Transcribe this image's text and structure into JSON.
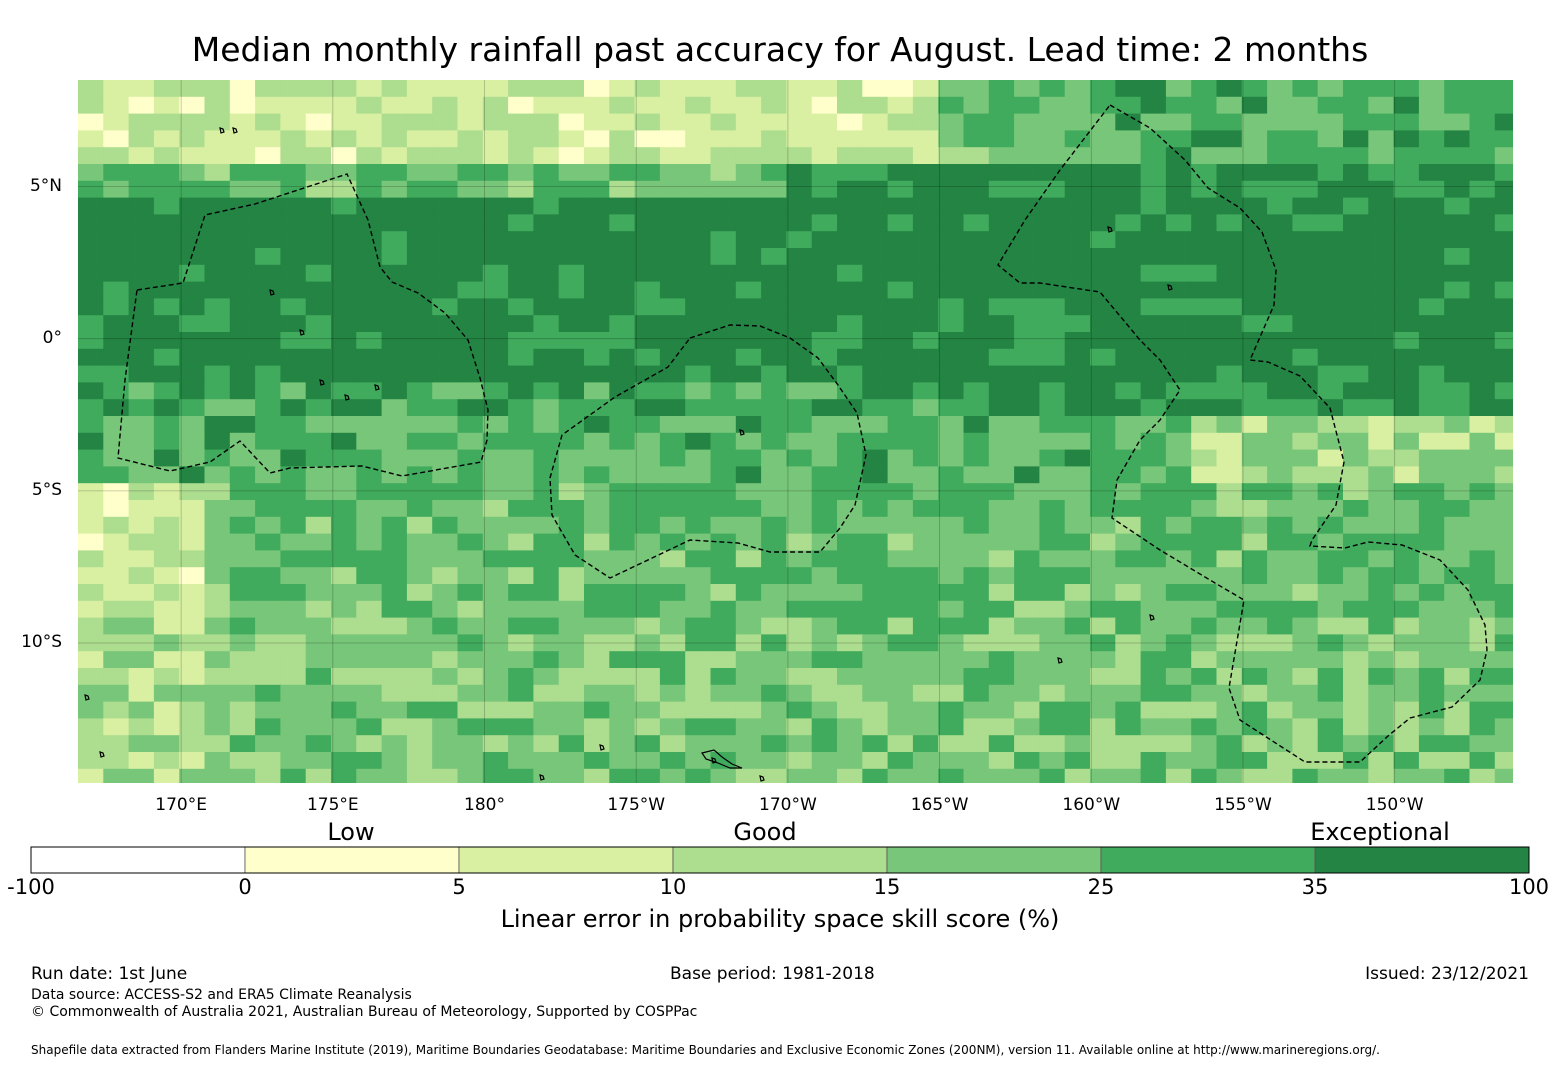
{
  "title": "Median monthly rainfall past accuracy for August. Lead time: 2 months",
  "map": {
    "lon_range": [
      166.6,
      213.9
    ],
    "lat_range": [
      -14.6,
      8.5
    ],
    "lat_ticks": [
      {
        "value": 5,
        "label": "5°N"
      },
      {
        "value": 0,
        "label": "0°"
      },
      {
        "value": -5,
        "label": "5°S"
      },
      {
        "value": -10,
        "label": "10°S"
      }
    ],
    "lon_ticks": [
      {
        "value": 170,
        "label": "170°E"
      },
      {
        "value": 175,
        "label": "175°E"
      },
      {
        "value": 180,
        "label": "180°"
      },
      {
        "value": 185,
        "label": "175°W"
      },
      {
        "value": 190,
        "label": "170°W"
      },
      {
        "value": 195,
        "label": "165°W"
      },
      {
        "value": 200,
        "label": "160°W"
      },
      {
        "value": 205,
        "label": "155°W"
      },
      {
        "value": 210,
        "label": "150°W"
      }
    ],
    "gridlines": true
  },
  "colorbar": {
    "title": "Linear error in probability space skill score (%)",
    "ticks": [
      "-100",
      "0",
      "5",
      "10",
      "15",
      "25",
      "35",
      "100"
    ],
    "colors": [
      "#ffffff",
      "#ffffcc",
      "#d9f0a3",
      "#addd8e",
      "#78c679",
      "#41ab5d",
      "#238443"
    ],
    "categories": [
      {
        "label": "Low",
        "position": "left"
      },
      {
        "label": "Good",
        "position": "center"
      },
      {
        "label": "Exceptional",
        "position": "right"
      }
    ]
  },
  "footer": {
    "run_date": "Run date: 1st June",
    "base_period": "Base period: 1981-2018",
    "issued": "Issued: 23/12/2021",
    "data_source": "Data source: ACCESS-S2 and ERA5 Climate Reanalysis",
    "copyright": "© Commonwealth of Australia 2021, Australian Bureau of Meteorology, Supported by COSPPac",
    "shapefile": "Shapefile data extracted from Flanders Marine Institute (2019), Maritime Boundaries Geodatabase: Maritime Boundaries and Exclusive Economic Zones (200NM), version 11. Available online at http://www.marineregions.org/."
  }
}
